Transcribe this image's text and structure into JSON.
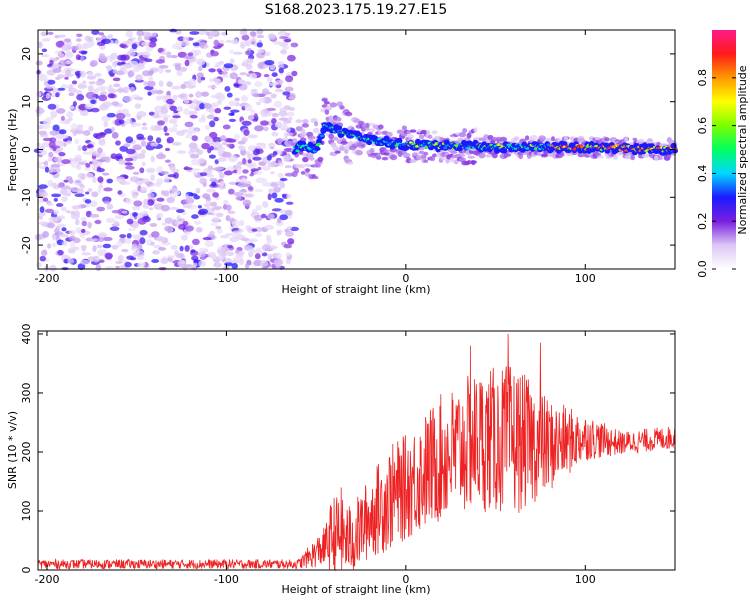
{
  "title": "S168.2023.175.19.27.E15",
  "chart_data": [
    {
      "type": "heatmap",
      "xlabel": "Height of straight line (km)",
      "ylabel": "Frequency (Hz)",
      "xlim": [
        -205,
        150
      ],
      "ylim": [
        -25,
        25
      ],
      "xticks": [
        -200,
        -100,
        0,
        100
      ],
      "xtick_labels": [
        "-200",
        "-100",
        "0",
        "100"
      ],
      "yticks": [
        -20,
        -10,
        0,
        10,
        20
      ],
      "ytick_labels": [
        "-20",
        "-10",
        "0",
        "10",
        "20"
      ],
      "noise_region_x": [
        -205,
        -62
      ],
      "ridge": {
        "start_x": -62,
        "points": [
          {
            "x": -60,
            "y": 1.0
          },
          {
            "x": -50,
            "y": 0.0
          },
          {
            "x": -45,
            "y": 5.0
          },
          {
            "x": -30,
            "y": 3.0
          },
          {
            "x": -20,
            "y": 2.0
          },
          {
            "x": 0,
            "y": 1.0
          },
          {
            "x": 50,
            "y": 0.5
          },
          {
            "x": 100,
            "y": 0.5
          },
          {
            "x": 150,
            "y": 0.0
          }
        ]
      },
      "colorbar": {
        "label": "Normalized spectral amplitude",
        "range": [
          0.0,
          1.0
        ],
        "ticks": [
          0.0,
          0.2,
          0.4,
          0.6,
          0.8
        ],
        "tick_labels": [
          "0.0",
          "0.2",
          "0.4",
          "0.6",
          "0.8"
        ],
        "colors": [
          "#ffffff",
          "#dcc6f5",
          "#7a1fe0",
          "#1a1aff",
          "#00d8ff",
          "#00ff60",
          "#7cff00",
          "#ffff00",
          "#ff9a00",
          "#ff1a1a",
          "#ff1a8a"
        ]
      },
      "grid": false
    },
    {
      "type": "line",
      "xlabel": "Height of straight line (km)",
      "ylabel": "SNR (10 * v/v)",
      "xlim": [
        -205,
        150
      ],
      "ylim": [
        0,
        405
      ],
      "xticks": [
        -200,
        -100,
        0,
        100
      ],
      "xtick_labels": [
        "-200",
        "-100",
        "0",
        "100"
      ],
      "yticks": [
        0,
        100,
        200,
        300,
        400
      ],
      "ytick_labels": [
        "0",
        "100",
        "200",
        "300",
        "400"
      ],
      "color": "#ee2222",
      "envelope": [
        {
          "x": -205,
          "mean": 10,
          "spread": 8
        },
        {
          "x": -60,
          "mean": 10,
          "spread": 8
        },
        {
          "x": -45,
          "mean": 40,
          "spread": 35
        },
        {
          "x": -40,
          "mean": 60,
          "spread": 70
        },
        {
          "x": -30,
          "mean": 50,
          "spread": 60
        },
        {
          "x": -20,
          "mean": 90,
          "spread": 70
        },
        {
          "x": -10,
          "mean": 120,
          "spread": 90
        },
        {
          "x": 0,
          "mean": 140,
          "spread": 90
        },
        {
          "x": 20,
          "mean": 190,
          "spread": 110
        },
        {
          "x": 40,
          "mean": 220,
          "spread": 120
        },
        {
          "x": 60,
          "mean": 220,
          "spread": 130
        },
        {
          "x": 80,
          "mean": 210,
          "spread": 80
        },
        {
          "x": 100,
          "mean": 225,
          "spread": 40
        },
        {
          "x": 120,
          "mean": 215,
          "spread": 20
        },
        {
          "x": 150,
          "mean": 225,
          "spread": 20
        }
      ],
      "peaks": [
        {
          "x": 36,
          "y": 380
        },
        {
          "x": 57,
          "y": 400
        },
        {
          "x": 75,
          "y": 385
        },
        {
          "x": -36,
          "y": 140
        },
        {
          "x": -42,
          "y": 110
        }
      ],
      "grid": false
    }
  ]
}
